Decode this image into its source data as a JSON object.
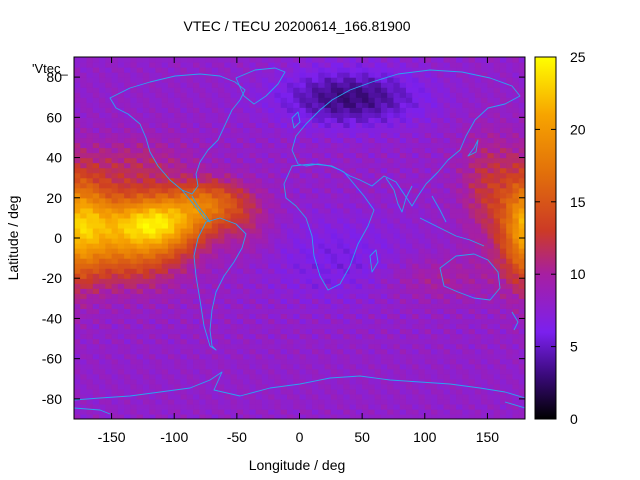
{
  "chart_data": {
    "type": "heatmap",
    "title": "VTEC / TECU 20200614_166.81900",
    "xlabel": "Longitude / deg",
    "ylabel": "Latitude / deg",
    "corner_label": "'Vtec_",
    "xlim": [
      -180,
      180
    ],
    "ylim": [
      -90,
      90
    ],
    "x_ticks": [
      -150,
      -100,
      -50,
      0,
      50,
      100,
      150
    ],
    "y_ticks": [
      -80,
      -60,
      -40,
      -20,
      0,
      20,
      40,
      60,
      80
    ],
    "colorbar": {
      "range": [
        0,
        25
      ],
      "ticks": [
        0,
        5,
        10,
        15,
        20,
        25
      ],
      "palette": [
        {
          "value": 0,
          "color": "#000000"
        },
        {
          "value": 3,
          "color": "#3a0a7a"
        },
        {
          "value": 6,
          "color": "#7b20ee"
        },
        {
          "value": 10,
          "color": "#a71fa2"
        },
        {
          "value": 13,
          "color": "#cc3a26"
        },
        {
          "value": 17,
          "color": "#e2700a"
        },
        {
          "value": 21,
          "color": "#f7a400"
        },
        {
          "value": 25,
          "color": "#ffff00"
        }
      ]
    },
    "grid": false,
    "coastline_color": "#2aa5ef",
    "background_level": 8,
    "features": [
      {
        "lon": -115,
        "lat": 8,
        "slon": 28,
        "slat": 10,
        "amp": 14
      },
      {
        "lon": -70,
        "lat": 18,
        "slon": 22,
        "slat": 8,
        "amp": 7
      },
      {
        "lon": -135,
        "lat": -8,
        "slon": 30,
        "slat": 12,
        "amp": 6
      },
      {
        "lon": -130,
        "lat": 36,
        "slon": 30,
        "slat": 10,
        "amp": 3
      },
      {
        "lon": -165,
        "lat": 10,
        "slon": 18,
        "slat": 14,
        "amp": 6
      },
      {
        "lon": 180,
        "lat": 5,
        "slon": 14,
        "slat": 20,
        "amp": 8
      },
      {
        "lon": 150,
        "lat": 25,
        "slon": 15,
        "slat": 18,
        "amp": 4
      },
      {
        "lon": -40,
        "lat": 5,
        "slon": 15,
        "slat": 10,
        "amp": 2
      },
      {
        "lon": 40,
        "lat": 70,
        "slon": 40,
        "slat": 10,
        "amp": -5
      },
      {
        "lon": 30,
        "lat": -10,
        "slon": 40,
        "slat": 15,
        "amp": -2
      },
      {
        "lon": 110,
        "lat": -20,
        "slon": 30,
        "slat": 8,
        "amp": 2
      }
    ]
  }
}
